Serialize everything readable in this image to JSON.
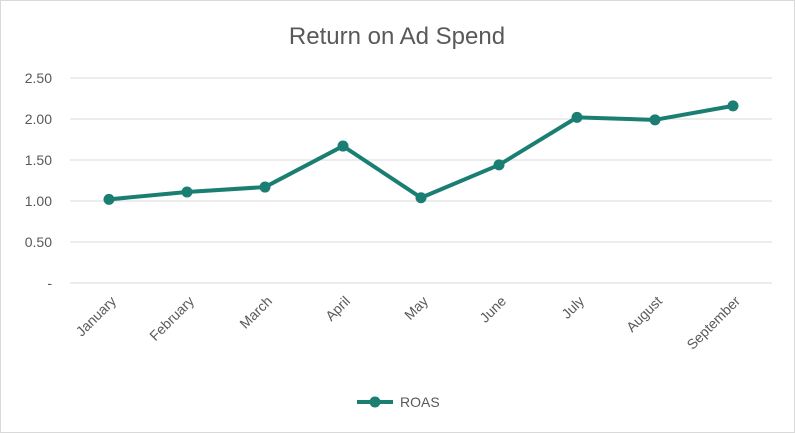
{
  "chart_data": {
    "type": "line",
    "title": "Return on Ad Spend",
    "xlabel": "",
    "ylabel": "",
    "categories": [
      "January",
      "February",
      "March",
      "April",
      "May",
      "June",
      "July",
      "August",
      "September"
    ],
    "series": [
      {
        "name": "ROAS",
        "values": [
          1.02,
          1.11,
          1.17,
          1.67,
          1.04,
          1.44,
          2.02,
          1.99,
          2.16
        ]
      }
    ],
    "ylim": [
      0,
      2.5
    ],
    "yticks": [
      {
        "value": 0,
        "label": "-"
      },
      {
        "value": 0.5,
        "label": "0.50"
      },
      {
        "value": 1.0,
        "label": "1.00"
      },
      {
        "value": 1.5,
        "label": "1.50"
      },
      {
        "value": 2.0,
        "label": "2.00"
      },
      {
        "value": 2.5,
        "label": "2.50"
      }
    ],
    "grid": true,
    "legend_position": "bottom",
    "color": "#1a7f72"
  }
}
